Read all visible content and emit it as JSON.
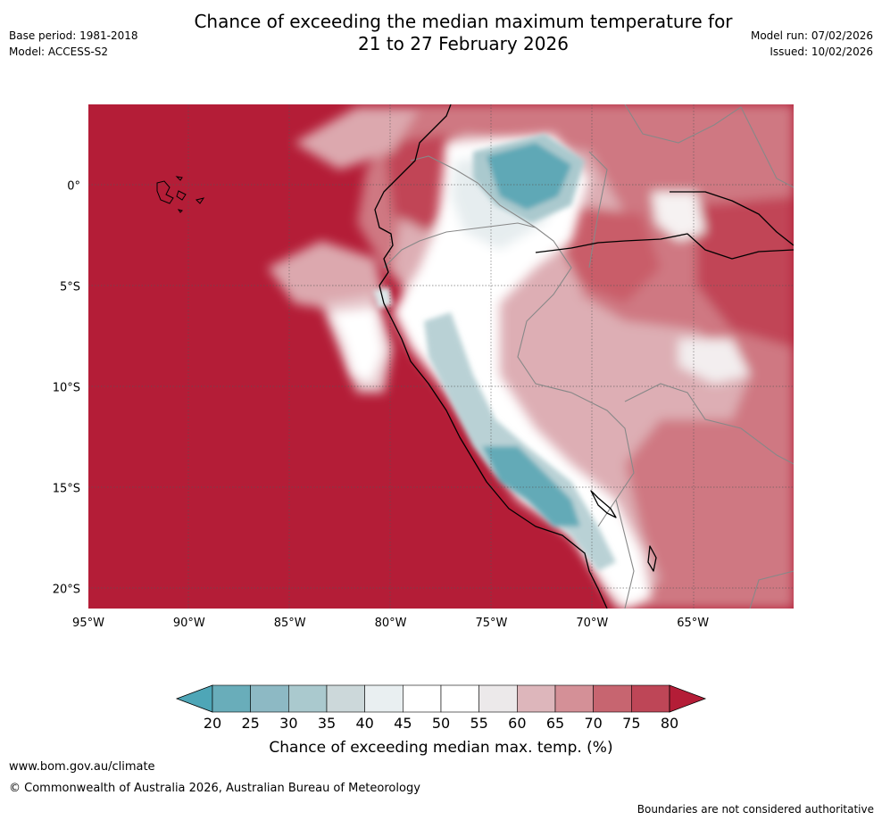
{
  "title": {
    "line1": "Chance of exceeding the median maximum temperature for",
    "line2": "21 to 27 February 2026"
  },
  "meta_left": {
    "base_period": "Base period: 1981-2018",
    "model": "Model: ACCESS-S2"
  },
  "meta_right": {
    "model_run": "Model run: 07/02/2026",
    "issued": "Issued: 10/02/2026"
  },
  "map": {
    "region": "Western South America",
    "lon_range": [
      -95,
      -60
    ],
    "lat_range": [
      -21,
      4
    ],
    "x_ticks": [
      {
        "lon": -95,
        "label": "95°W"
      },
      {
        "lon": -90,
        "label": "90°W"
      },
      {
        "lon": -85,
        "label": "85°W"
      },
      {
        "lon": -80,
        "label": "80°W"
      },
      {
        "lon": -75,
        "label": "75°W"
      },
      {
        "lon": -70,
        "label": "70°W"
      },
      {
        "lon": -65,
        "label": "65°W"
      }
    ],
    "y_ticks": [
      {
        "lat": 0,
        "label": "0°"
      },
      {
        "lat": -5,
        "label": "5°S"
      },
      {
        "lat": -10,
        "label": "10°S"
      },
      {
        "lat": -15,
        "label": "15°S"
      },
      {
        "lat": -20,
        "label": "20°S"
      }
    ],
    "background_color": "#b41d37"
  },
  "colorbar": {
    "ticks": [
      "20",
      "25",
      "30",
      "35",
      "40",
      "45",
      "50",
      "55",
      "60",
      "65",
      "70",
      "75",
      "80"
    ],
    "colors": [
      "#69adba",
      "#8db9c4",
      "#aac9ce",
      "#ccd8da",
      "#e9eff1",
      "#ffffff",
      "#ffffff",
      "#ece9ea",
      "#ddb6bb",
      "#d49097",
      "#c76570",
      "#be4657"
    ],
    "under_color": "#4ea6b7",
    "over_color": "#b41d37",
    "label": "Chance of exceeding median max. temp. (%)"
  },
  "footer": {
    "url": "www.bom.gov.au/climate",
    "copyright": "© Commonwealth of Australia 2026, Australian Bureau of Meteorology",
    "disclaimer": "Boundaries are not considered authoritative"
  }
}
